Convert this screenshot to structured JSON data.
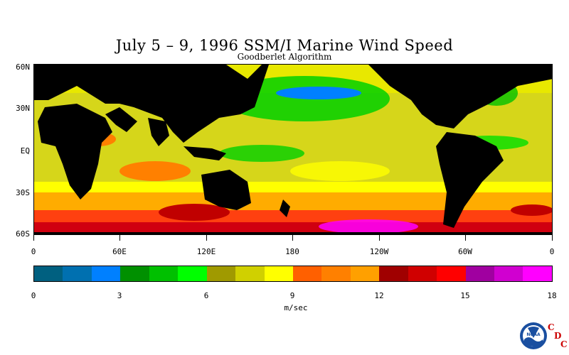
{
  "figure": {
    "title": "July 5 – 9, 1996 SSM/I Marine Wind Speed",
    "subtitle": "Goodberlet Algorithm"
  },
  "map": {
    "lat_labels": [
      "60N",
      "30N",
      "EQ",
      "30S",
      "60S"
    ],
    "lon_labels": [
      "0",
      "60E",
      "120E",
      "180",
      "120W",
      "60W",
      "0"
    ],
    "land_color": "#000000",
    "max_wind_color": "#ff00ff"
  },
  "colorbar": {
    "colors": [
      "#006080",
      "#0070b0",
      "#0080ff",
      "#009000",
      "#00c000",
      "#00ff00",
      "#a09a00",
      "#d0d000",
      "#ffff00",
      "#ff6000",
      "#ff8000",
      "#ffa000",
      "#a00000",
      "#d00000",
      "#ff0000",
      "#a000a0",
      "#d000d0",
      "#ff00ff"
    ],
    "tick_labels": [
      "0",
      "3",
      "6",
      "9",
      "12",
      "15",
      "18"
    ],
    "units": "m/sec"
  },
  "logo": {
    "noaa_text": "NOAA",
    "letters": [
      "C",
      "D",
      "C"
    ]
  }
}
